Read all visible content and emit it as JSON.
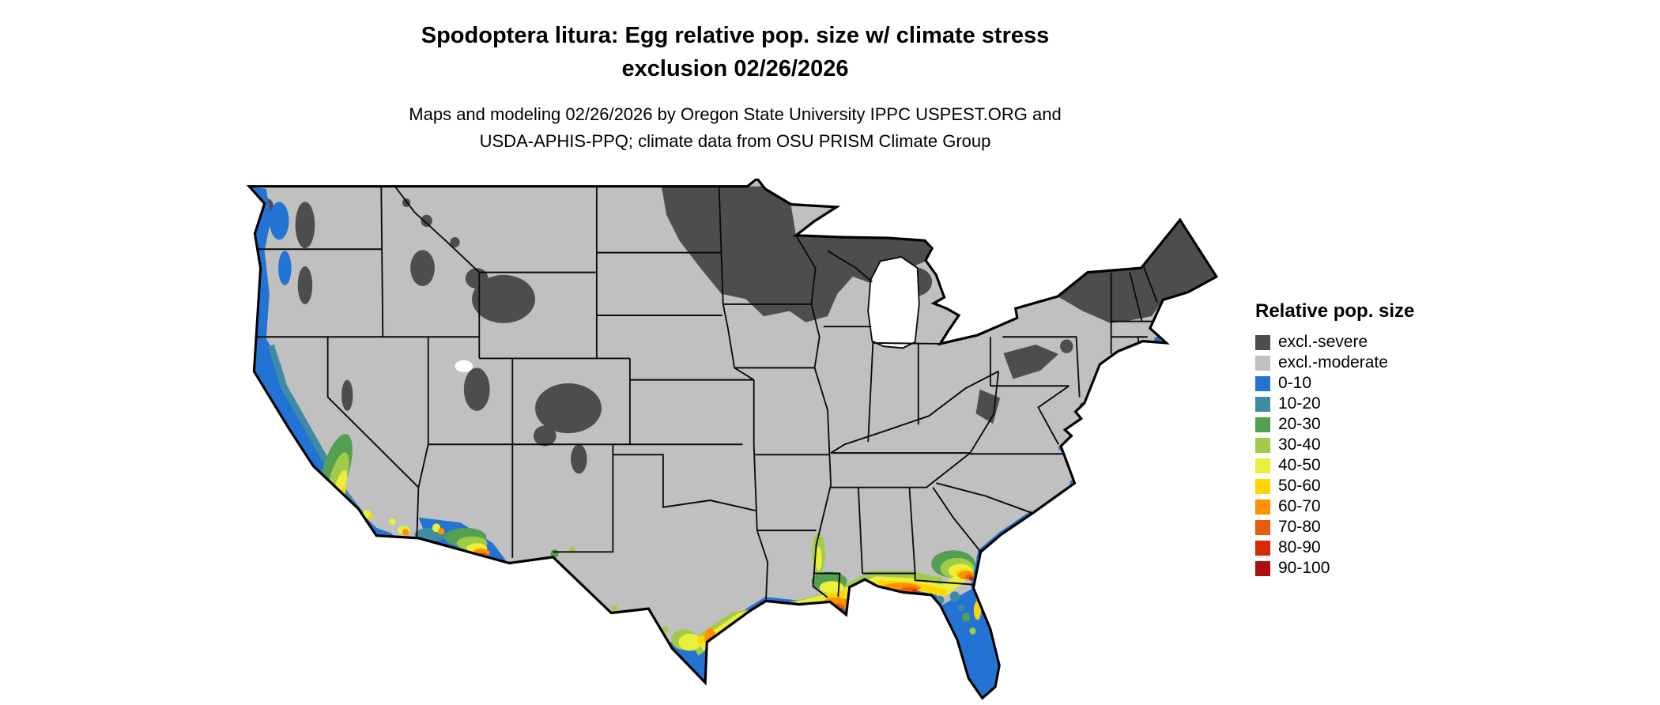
{
  "header": {
    "title_line1": "Spodoptera litura: Egg relative pop. size w/ climate stress",
    "title_line2": "exclusion 02/26/2026",
    "subtitle_line1": "Maps and modeling 02/26/2026 by Oregon State University IPPC USPEST.ORG and",
    "subtitle_line2": "USDA-APHIS-PPQ; climate data from OSU PRISM Climate Group"
  },
  "legend": {
    "title": "Relative pop. size",
    "items": [
      {
        "label": "excl.-severe",
        "color": "#4d4d4d"
      },
      {
        "label": "excl.-moderate",
        "color": "#c0c0c0"
      },
      {
        "label": "0-10",
        "color": "#2273d4"
      },
      {
        "label": "10-20",
        "color": "#3e8ba6"
      },
      {
        "label": "20-30",
        "color": "#53a053"
      },
      {
        "label": "30-40",
        "color": "#a2cb4a"
      },
      {
        "label": "40-50",
        "color": "#e9ef3b"
      },
      {
        "label": "50-60",
        "color": "#ffd500"
      },
      {
        "label": "60-70",
        "color": "#ff9100"
      },
      {
        "label": "70-80",
        "color": "#ea5c0d"
      },
      {
        "label": "80-90",
        "color": "#d42b05"
      },
      {
        "label": "90-100",
        "color": "#af0f0f"
      }
    ]
  },
  "map": {
    "background": "#ffffff",
    "land_base": "#c0c0c0",
    "severe_fill": "#4d4d4d",
    "border_color": "#000000"
  }
}
